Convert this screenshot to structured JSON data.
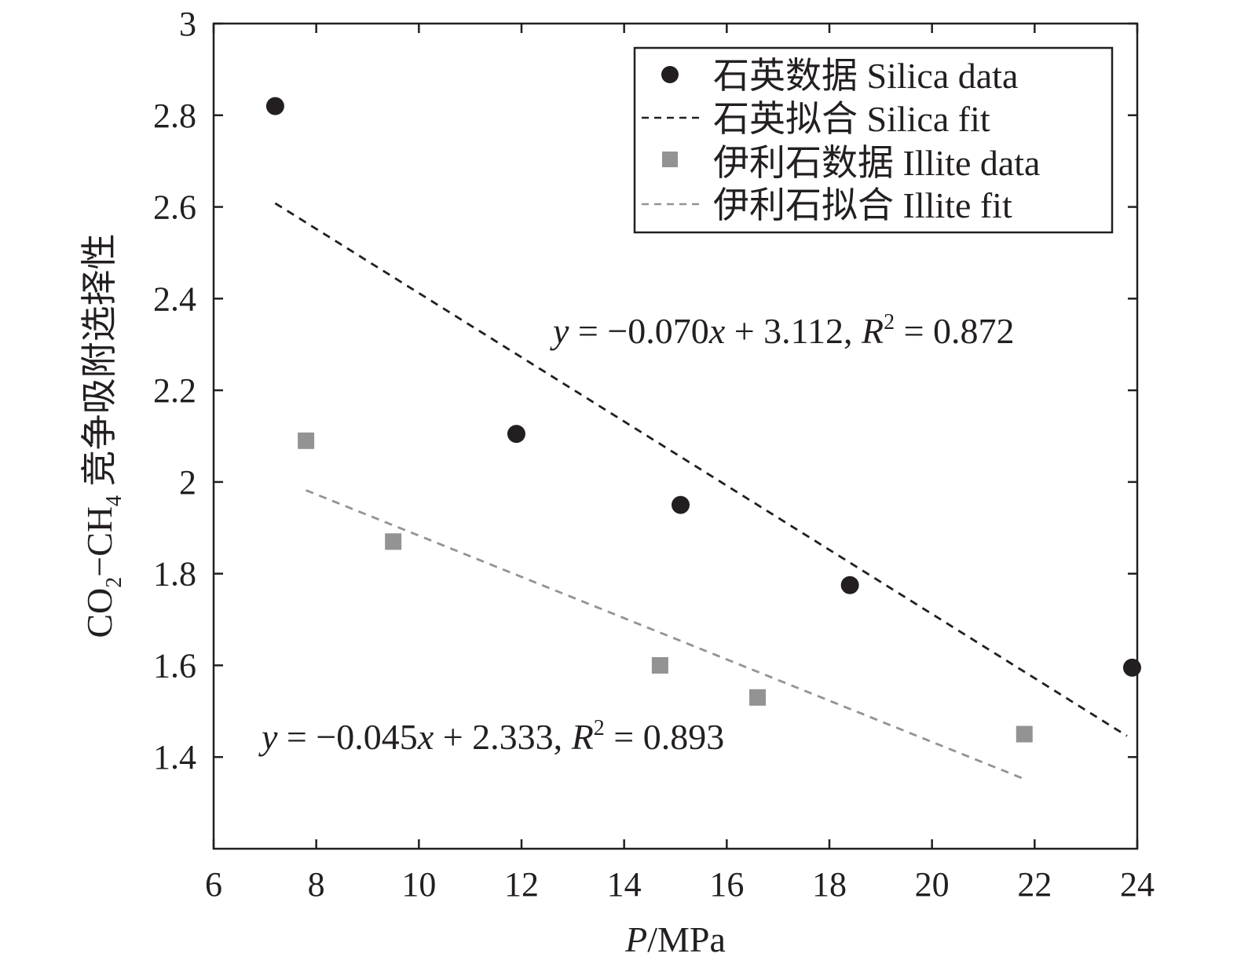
{
  "chart_data": {
    "type": "scatter",
    "xlabel": {
      "italic": "P",
      "rest": "/MPa"
    },
    "ylabel": {
      "co": "CO",
      "sub2": "2",
      "dash_ch": "−CH",
      "sub4": "4",
      "rest": " 竞争吸附选择性"
    },
    "xlim": [
      6,
      24
    ],
    "ylim": [
      1.2,
      3.0
    ],
    "xticks": [
      "6",
      "8",
      "10",
      "12",
      "14",
      "16",
      "18",
      "20",
      "22",
      "24"
    ],
    "yticks": [
      "1.4",
      "1.6",
      "1.8",
      "2",
      "2.2",
      "2.4",
      "2.6",
      "2.8",
      "3"
    ],
    "grid": false,
    "legend_position": "top-right",
    "series": [
      {
        "name": "石英数据 Silica data",
        "kind": "points",
        "marker": "circle",
        "color": "#231f20",
        "x": [
          7.2,
          11.9,
          15.1,
          18.4,
          23.9
        ],
        "y": [
          2.82,
          2.105,
          1.95,
          1.775,
          1.595
        ]
      },
      {
        "name": "石英拟合 Silica fit",
        "kind": "line",
        "dash": true,
        "color": "#231f20",
        "x": [
          7.2,
          23.8
        ],
        "y": [
          2.608,
          1.446
        ]
      },
      {
        "name": "伊利石数据 Illite data",
        "kind": "points",
        "marker": "square",
        "color": "#939393",
        "x": [
          7.8,
          9.5,
          14.7,
          16.6,
          21.8
        ],
        "y": [
          2.09,
          1.87,
          1.6,
          1.53,
          1.45
        ]
      },
      {
        "name": "伊利石拟合 Illite fit",
        "kind": "line",
        "dash": true,
        "color": "#939393",
        "x": [
          7.8,
          21.8
        ],
        "y": [
          1.982,
          1.352
        ]
      }
    ],
    "annotations": [
      {
        "y": "y",
        "body": " = −0.070",
        "x": "x",
        "tail": " + 3.112, ",
        "R": "R",
        "sup": "2",
        "end": " = 0.872"
      },
      {
        "y": "y",
        "body": " = −0.045",
        "x": "x",
        "tail": " + 2.333, ",
        "R": "R",
        "sup": "2",
        "end": " = 0.893"
      }
    ]
  }
}
